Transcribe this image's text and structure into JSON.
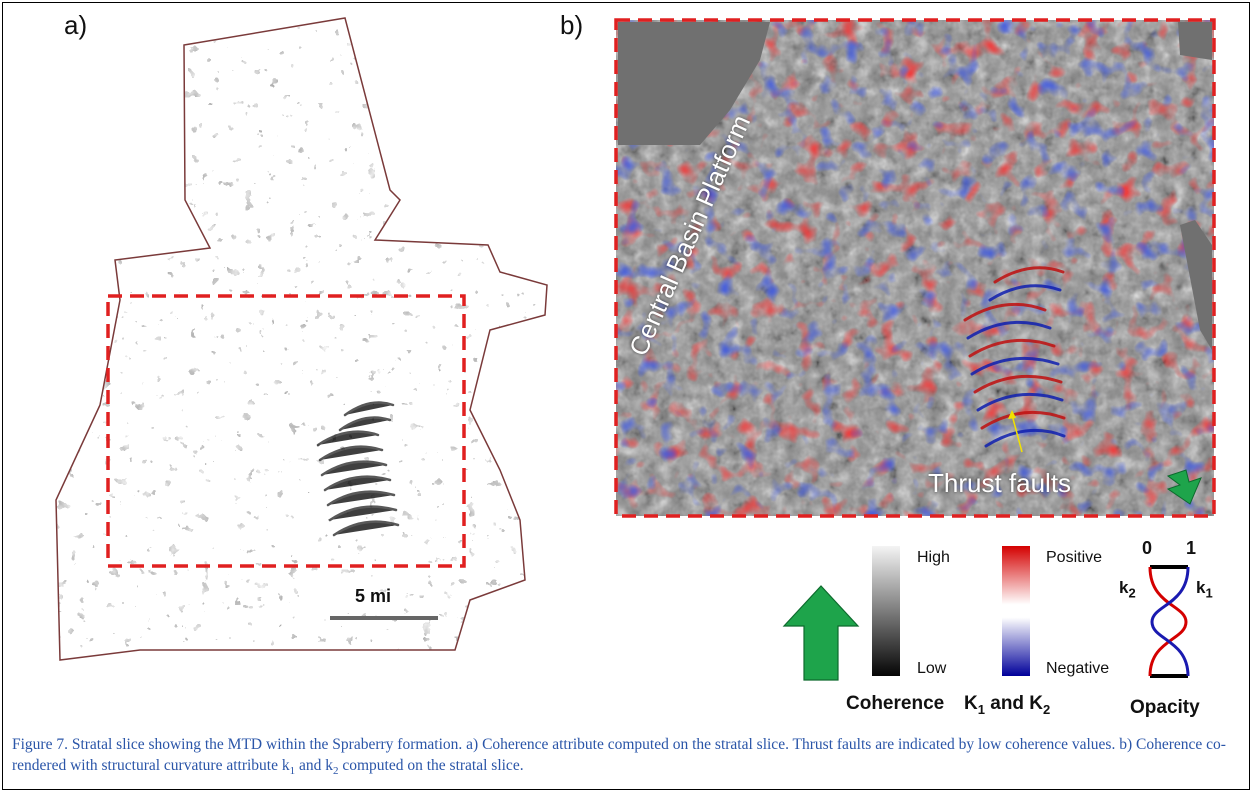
{
  "panel_a": {
    "label": "a)",
    "scale_bar": "5 mi"
  },
  "panel_b": {
    "label": "b)",
    "annotations": {
      "central_basin_platform": "Central Basin Platform",
      "thrust_faults": "Thrust faults"
    }
  },
  "legend": {
    "coherence": {
      "title": "Coherence",
      "high": "High",
      "low": "Low"
    },
    "curvature": {
      "title_k": "K",
      "title_sub1": "1",
      "title_and": " and K",
      "title_sub2": "2",
      "positive": "Positive",
      "negative": "Negative"
    },
    "opacity": {
      "title": "Opacity",
      "zero": "0",
      "one": "1",
      "k2": "k",
      "k2_sub": "2",
      "k1": "k",
      "k1_sub": "1"
    }
  },
  "caption": {
    "part1": "Figure 7. Stratal slice showing the MTD within the Spraberry formation. a) Coherence attribute computed on the stratal slice. Thrust faults are indicated by low coherence values. b) Coherence co-rendered with structural curvature attribute k",
    "sub1": "1",
    "part2": " and k",
    "sub2": "2",
    "part3": " computed on the stratal slice."
  },
  "colors": {
    "dashed_box": "#e02020",
    "green_arrow": "#1ea44b",
    "positive": "#e01010",
    "negative": "#0a0a9a"
  }
}
